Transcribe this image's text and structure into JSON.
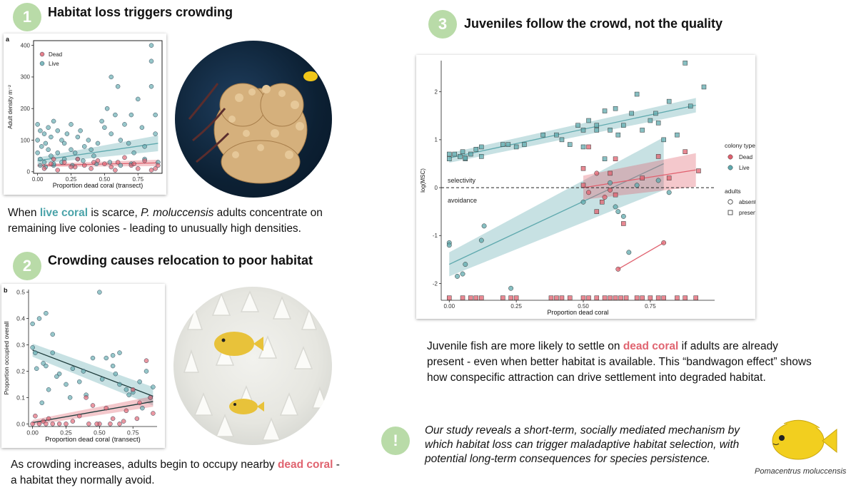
{
  "section1": {
    "badge": "1",
    "heading": "Habitat loss triggers crowding",
    "text_pre": "When ",
    "text_live": "live coral",
    "text_mid": " is scarce, ",
    "text_species": "P. moluccensis",
    "text_post": " adults concentrate on remaining live colonies - leading to unusually high densities."
  },
  "section2": {
    "badge": "2",
    "heading": "Crowding causes relocation to poor habitat",
    "text_pre": "As crowding increases, adults begin to occupy nearby ",
    "text_dead": "dead coral",
    "text_post": " - a habitat they normally avoid."
  },
  "section3": {
    "badge": "3",
    "heading": "Juveniles follow the crowd, not the quality",
    "text_pre": "Juvenile fish are more likely to settle on ",
    "text_dead": "dead coral",
    "text_post": " if adults are already present - even when better habitat is available. This “bandwagon effect” shows how conspecific attraction can drive settlement into degraded habitat."
  },
  "conclusion": {
    "badge": "!",
    "text": "Our study reveals a short-term, socially mediated mechanism by which habitat loss can trigger maladaptive habitat selection, with potential long-term consequences for species persistence.",
    "caption": "Pomacentrus moluccensis"
  },
  "colors": {
    "dead": "#e0606e",
    "live": "#5fa9ae",
    "badge": "#b9dba8"
  },
  "chart_data": [
    {
      "type": "scatter",
      "panel_label": "a",
      "xlabel": "Proportion dead coral (transect)",
      "ylabel": "Adult density m⁻²",
      "xlim": [
        -0.03,
        0.93
      ],
      "ylim": [
        -5,
        415
      ],
      "xticks": [
        0,
        0.25,
        0.5,
        0.75
      ],
      "xtick_labels": [
        "0.00",
        "0.25",
        "0.50",
        "0.75"
      ],
      "yticks": [
        0,
        100,
        200,
        300,
        400
      ],
      "ytick_labels": [
        "0",
        "100",
        "200",
        "300",
        "400"
      ],
      "legend": [
        "Dead",
        "Live"
      ],
      "series": [
        {
          "name": "Live",
          "color": "#5fa9ae",
          "x": [
            0,
            0,
            0,
            0.02,
            0.02,
            0.03,
            0.05,
            0.05,
            0.06,
            0.08,
            0.08,
            0.1,
            0.1,
            0.12,
            0.12,
            0.15,
            0.15,
            0.18,
            0.2,
            0.2,
            0.22,
            0.25,
            0.25,
            0.28,
            0.3,
            0.3,
            0.32,
            0.35,
            0.38,
            0.4,
            0.42,
            0.45,
            0.48,
            0.5,
            0.52,
            0.55,
            0.55,
            0.58,
            0.6,
            0.62,
            0.65,
            0.68,
            0.7,
            0.72,
            0.75,
            0.78,
            0.8,
            0.85,
            0.85,
            0.85,
            0.88,
            0.88,
            0.9,
            0.02,
            0.06,
            0.12,
            0.18,
            0.26,
            0.34,
            0.44,
            0.54,
            0.62,
            0.7,
            0.8
          ],
          "y": [
            150,
            100,
            60,
            130,
            40,
            80,
            120,
            30,
            90,
            70,
            140,
            110,
            50,
            160,
            20,
            130,
            60,
            100,
            90,
            40,
            120,
            70,
            150,
            60,
            110,
            40,
            130,
            80,
            100,
            70,
            50,
            90,
            160,
            140,
            200,
            300,
            120,
            180,
            270,
            100,
            150,
            90,
            180,
            60,
            230,
            140,
            80,
            400,
            350,
            270,
            180,
            120,
            30,
            20,
            15,
            25,
            30,
            20,
            35,
            25,
            30,
            20,
            25,
            40
          ]
        },
        {
          "name": "Dead",
          "color": "#e0606e",
          "x": [
            0.05,
            0.1,
            0.15,
            0.2,
            0.25,
            0.3,
            0.35,
            0.4,
            0.45,
            0.5,
            0.55,
            0.6,
            0.65,
            0.7,
            0.75,
            0.8,
            0.85,
            0.9,
            0.12,
            0.28,
            0.42,
            0.58,
            0.72,
            0.88
          ],
          "y": [
            10,
            25,
            5,
            30,
            15,
            40,
            20,
            10,
            35,
            25,
            15,
            30,
            45,
            20,
            10,
            35,
            5,
            20,
            40,
            15,
            30,
            5,
            25,
            10
          ]
        }
      ],
      "trendlines": [
        {
          "series": "Live",
          "x": [
            0,
            0.9
          ],
          "y": [
            35,
            90
          ],
          "band": [
            10,
            25
          ]
        },
        {
          "series": "Dead",
          "x": [
            0,
            0.9
          ],
          "y": [
            20,
            28
          ],
          "band": [
            5,
            10
          ]
        }
      ]
    },
    {
      "type": "scatter",
      "panel_label": "b",
      "xlabel": "Proportion dead coral (transect)",
      "ylabel": "Proportion occupied overall",
      "xlim": [
        -0.03,
        0.93
      ],
      "ylim": [
        -0.01,
        0.51
      ],
      "xticks": [
        0,
        0.25,
        0.5,
        0.75
      ],
      "xtick_labels": [
        "0.00",
        "0.25",
        "0.50",
        "0.75"
      ],
      "yticks": [
        0,
        0.1,
        0.2,
        0.3,
        0.4,
        0.5
      ],
      "ytick_labels": [
        "0.0",
        "0.1",
        "0.2",
        "0.3",
        "0.4",
        "0.5"
      ],
      "series": [
        {
          "name": "Live",
          "color": "#5fa9ae",
          "x": [
            0,
            0,
            0.02,
            0.05,
            0.08,
            0.1,
            0.1,
            0.12,
            0.15,
            0.15,
            0.2,
            0.25,
            0.3,
            0.35,
            0.4,
            0.45,
            0.5,
            0.55,
            0.6,
            0.6,
            0.65,
            0.65,
            0.7,
            0.75,
            0.8,
            0.85,
            0.88,
            0.9,
            0.03,
            0.07,
            0.18,
            0.28,
            0.38,
            0.52,
            0.62,
            0.72,
            0.82
          ],
          "y": [
            0.38,
            0.29,
            0.27,
            0.4,
            0.23,
            0.42,
            0.22,
            0.13,
            0.27,
            0.34,
            0.19,
            0.15,
            0.21,
            0.16,
            0.11,
            0.25,
            0.5,
            0.25,
            0.26,
            0.22,
            0.27,
            0.15,
            0.13,
            0.12,
            0.16,
            0.2,
            0.1,
            0.14,
            0.21,
            0.08,
            0.18,
            0.1,
            0.2,
            0.17,
            0.19,
            0.11,
            0.06
          ]
        },
        {
          "name": "Dead",
          "color": "#e0606e",
          "x": [
            0,
            0.02,
            0.05,
            0.08,
            0.1,
            0.12,
            0.15,
            0.2,
            0.25,
            0.3,
            0.35,
            0.4,
            0.45,
            0.5,
            0.55,
            0.6,
            0.65,
            0.7,
            0.75,
            0.8,
            0.85,
            0.88,
            0.9,
            0.42,
            0.48,
            0.58,
            0.68,
            0.78
          ],
          "y": [
            0,
            0.03,
            0,
            0.01,
            0,
            0.02,
            0,
            0,
            0,
            0.01,
            0.03,
            0.1,
            0.07,
            0,
            0.06,
            0.02,
            0,
            0.05,
            0.13,
            0.08,
            0.24,
            0.1,
            0.04,
            0,
            0,
            0,
            0.01,
            0.02
          ]
        }
      ],
      "trendlines": [
        {
          "series": "Live",
          "x": [
            0,
            0.9
          ],
          "y": [
            0.28,
            0.105
          ],
          "band": [
            0.025,
            0.035
          ]
        },
        {
          "series": "Dead",
          "x": [
            0,
            0.9
          ],
          "y": [
            0.005,
            0.085
          ],
          "band": [
            0.01,
            0.02
          ]
        }
      ]
    },
    {
      "type": "scatter",
      "xlabel": "Proportion dead coral",
      "ylabel": "log(MSC)",
      "xlim": [
        -0.03,
        0.99
      ],
      "ylim": [
        -2.35,
        2.65
      ],
      "xticks": [
        0,
        0.25,
        0.5,
        0.75
      ],
      "xtick_labels": [
        "0.00",
        "0.25",
        "0.50",
        "0.75"
      ],
      "yticks": [
        -2,
        -1,
        0,
        1,
        2
      ],
      "ytick_labels": [
        "-2",
        "-1",
        "0",
        "1",
        "2"
      ],
      "hline": 0,
      "annotations": [
        "selectivity",
        "avoidance"
      ],
      "legend_colour_title": "colony type",
      "legend_colour": [
        "Dead",
        "Live"
      ],
      "legend_shape_title": "adults",
      "legend_shape": [
        "absent",
        "present"
      ],
      "series": [
        {
          "name": "Live",
          "adults": "present",
          "color": "#5fa9ae",
          "x": [
            0,
            0,
            0.02,
            0.04,
            0.05,
            0.06,
            0.08,
            0.1,
            0.12,
            0.12,
            0.2,
            0.22,
            0.25,
            0.28,
            0.35,
            0.4,
            0.42,
            0.45,
            0.48,
            0.5,
            0.52,
            0.55,
            0.55,
            0.58,
            0.6,
            0.62,
            0.63,
            0.65,
            0.7,
            0.72,
            0.75,
            0.78,
            0.8,
            0.82,
            0.85,
            0.88,
            0.9,
            0.95,
            0.06,
            0.5,
            0.58,
            0.68,
            0.77
          ],
          "y": [
            0.6,
            0.7,
            0.7,
            0.65,
            0.75,
            0.6,
            0.7,
            0.8,
            0.85,
            0.65,
            0.9,
            0.9,
            0.85,
            0.9,
            1.1,
            1.1,
            1.0,
            0.9,
            1.3,
            1.2,
            1.4,
            1.2,
            1.3,
            1.6,
            1.2,
            1.65,
            1.1,
            1.3,
            1.95,
            1.2,
            1.4,
            1.35,
            1.0,
            1.8,
            1.1,
            2.6,
            1.7,
            2.1,
            0.62,
            0.85,
            0.6,
            1.55,
            1.55
          ]
        },
        {
          "name": "Live",
          "adults": "absent",
          "color": "#5fa9ae",
          "x": [
            0,
            0,
            0.03,
            0.05,
            0.06,
            0.12,
            0.13,
            0.23,
            0.5,
            0.6,
            0.62,
            0.63,
            0.65,
            0.67,
            0.7,
            0.78,
            0.82
          ],
          "y": [
            -1.15,
            -1.2,
            -1.85,
            -1.8,
            -1.6,
            -1.1,
            -0.8,
            -2.1,
            -0.3,
            0.1,
            -0.4,
            -0.5,
            -0.6,
            -1.35,
            0.05,
            0.15,
            -0.1
          ]
        },
        {
          "name": "Dead",
          "adults": "present",
          "color": "#e0606e",
          "x": [
            0.5,
            0.52,
            0.55,
            0.57,
            0.6,
            0.62,
            0.65,
            0.72,
            0.78,
            0.82,
            0.88,
            0.93,
            0.5,
            0.62
          ],
          "y": [
            0.4,
            0.85,
            -0.5,
            -0.3,
            0.3,
            0.6,
            -0.75,
            0.2,
            0.65,
            0.2,
            0.75,
            0.35,
            0.05,
            -0.15
          ]
        },
        {
          "name": "Dead",
          "adults": "absent",
          "color": "#e0606e",
          "x": [
            0.63,
            0.8,
            0.52,
            0.58,
            0.6,
            0.55
          ],
          "y": [
            -1.7,
            -1.15,
            -0.1,
            -0.2,
            -0.05,
            0.3
          ]
        }
      ],
      "bottom_row": {
        "x": [
          0,
          0.05,
          0.08,
          0.1,
          0.12,
          0.2,
          0.23,
          0.25,
          0.38,
          0.4,
          0.42,
          0.45,
          0.5,
          0.52,
          0.55,
          0.58,
          0.6,
          0.62,
          0.64,
          0.66,
          0.7,
          0.72,
          0.75,
          0.78,
          0.8,
          0.85,
          0.88,
          0.92
        ],
        "y": -2.3
      },
      "trendlines": [
        {
          "series": "Live",
          "x": [
            0,
            0.92
          ],
          "y": [
            0.62,
            1.72
          ],
          "band": [
            0.1,
            0.15
          ]
        },
        {
          "series": "Live",
          "x": [
            0,
            0.8
          ],
          "y": [
            -1.6,
            0.5
          ],
          "band": [
            0.25,
            0.55
          ]
        },
        {
          "series": "Dead",
          "x": [
            0.5,
            0.92
          ],
          "y": [
            0,
            0.37
          ],
          "band": [
            0.25,
            0.35
          ]
        },
        {
          "series": "Dead",
          "x": [
            0.63,
            0.8
          ],
          "y": [
            -1.7,
            -1.15
          ],
          "band": [
            0,
            0
          ]
        }
      ]
    }
  ]
}
